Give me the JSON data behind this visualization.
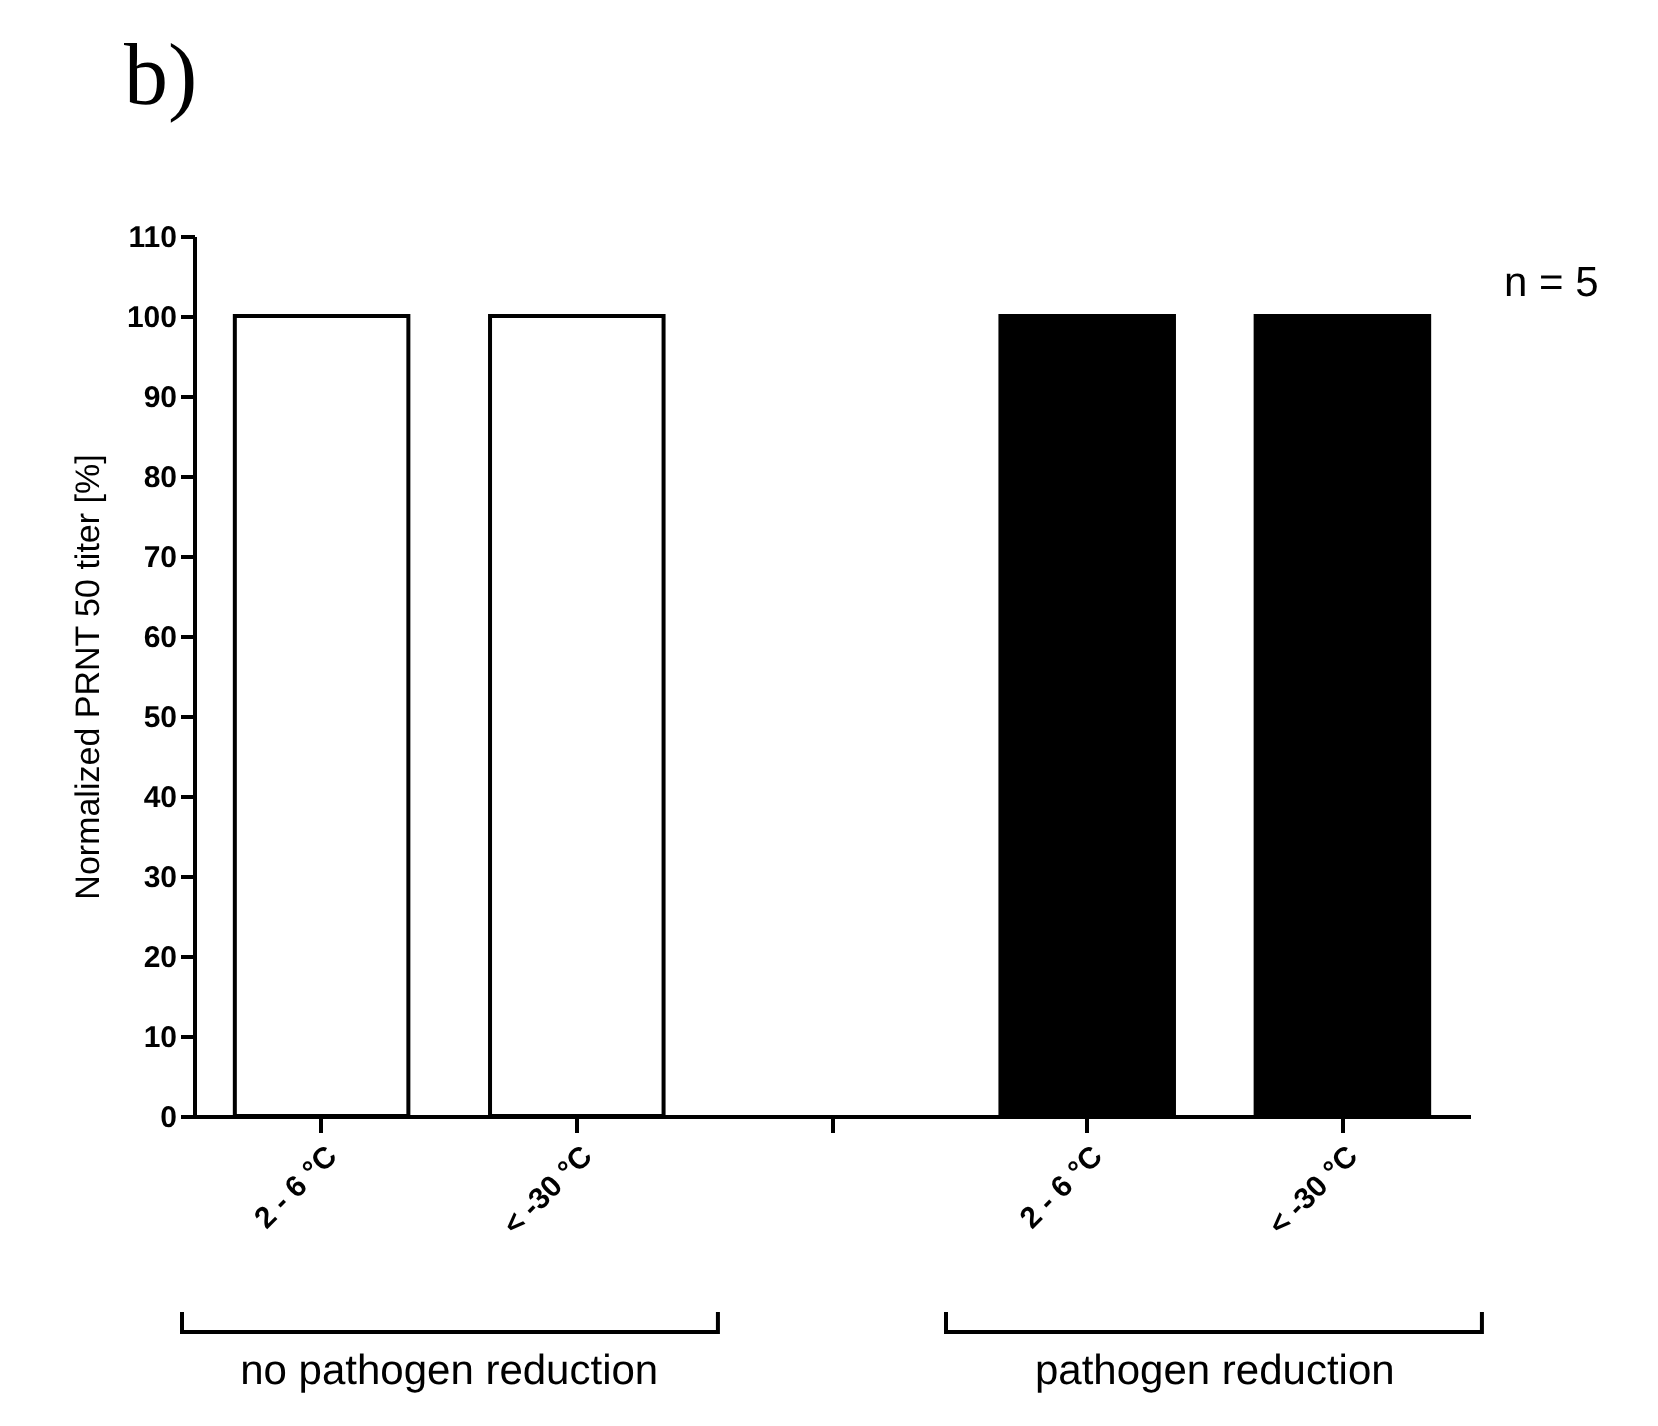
{
  "chart_data": {
    "type": "bar",
    "title": "b)",
    "ylabel": "Normalized PRNT 50 titer [%]",
    "categories": [
      "2 - 6 °C",
      "< -30 °C",
      null,
      "2 - 6 °C",
      "< -30 °C"
    ],
    "values": [
      100,
      100,
      null,
      100,
      100
    ],
    "colors": [
      "#ffffff",
      "#ffffff",
      null,
      "#000000",
      "#000000"
    ],
    "ylim": [
      0,
      110
    ],
    "yticks": [
      0,
      10,
      20,
      30,
      40,
      50,
      60,
      70,
      80,
      90,
      100,
      110
    ],
    "grid": false,
    "annotations": [
      "n = 5",
      "no pathogen reduction",
      "pathogen reduction"
    ]
  }
}
